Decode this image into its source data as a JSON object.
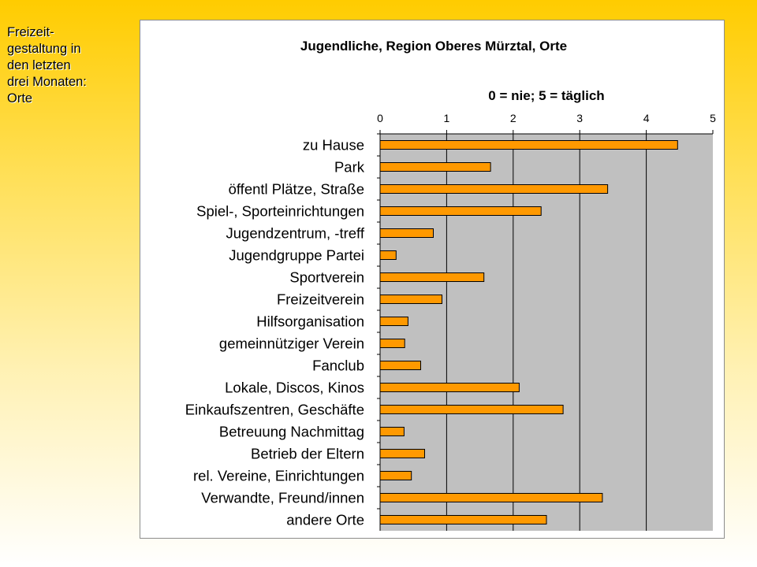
{
  "side_title": {
    "lines": [
      "Freizeit-",
      "gestaltung in",
      "den letzten",
      "drei Monaten:",
      "Orte"
    ]
  },
  "chart_data": {
    "type": "bar",
    "orientation": "horizontal",
    "title": "Jugendliche, Region Oberes Mürztal, Orte",
    "subtitle": "0 = nie; 5 = täglich",
    "categories": [
      "zu Hause",
      "Park",
      "öffentl Plätze, Straße",
      "Spiel-, Sporteinrichtungen",
      "Jugendzentrum, -treff",
      "Jugendgruppe Partei",
      "Sportverein",
      "Freizeitverein",
      "Hilfsorganisation",
      "gemeinnütziger Verein",
      "Fanclub",
      "Lokale, Discos, Kinos",
      "Einkaufszentren, Geschäfte",
      "Betreuung Nachmittag",
      "Betrieb der Eltern",
      "rel. Vereine, Einrichtungen",
      "Verwandte, Freund/innen",
      "andere Orte"
    ],
    "values": [
      4.47,
      1.66,
      3.42,
      2.42,
      0.8,
      0.24,
      1.56,
      0.93,
      0.42,
      0.37,
      0.61,
      2.09,
      2.75,
      0.36,
      0.67,
      0.47,
      3.34,
      2.5
    ],
    "xlim": [
      0,
      5
    ],
    "xticks": [
      "0",
      "1",
      "2",
      "3",
      "4",
      "5"
    ],
    "x_axis_position": "top",
    "grid": "vertical",
    "legend": "none",
    "colors": {
      "bar": "#ff9900",
      "bar_edge": "#000000",
      "plot_background": "#c0c0c0",
      "gridline": "#000000"
    }
  }
}
